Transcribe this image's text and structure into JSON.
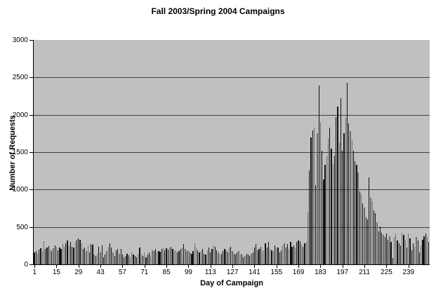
{
  "chart_data": {
    "type": "bar",
    "title": "Fall 2003/Spring 2004 Campaigns",
    "xlabel": "Day of Campaign",
    "ylabel": "Number of Requests",
    "ylim": [
      0,
      3000
    ],
    "yticks": [
      0,
      500,
      1000,
      1500,
      2000,
      2500,
      3000
    ],
    "xticks": [
      1,
      15,
      29,
      43,
      57,
      71,
      85,
      99,
      113,
      127,
      141,
      155,
      169,
      183,
      197,
      211,
      225,
      239
    ],
    "x_start_day": 1,
    "num_days": 252,
    "grid": "horizontal",
    "legend": "none",
    "colors": {
      "plot_background": "#c0c0c0",
      "gridline": "#404040",
      "bar": "#111111",
      "bar_fill_accent": "#6e6e6e",
      "axis": "#000000",
      "text": "#000000"
    },
    "values": [
      160,
      180,
      145,
      200,
      220,
      175,
      306,
      206,
      222,
      244,
      197,
      175,
      212,
      253,
      231,
      190,
      222,
      206,
      269,
      231,
      284,
      316,
      253,
      300,
      237,
      222,
      300,
      331,
      347,
      325,
      284,
      206,
      222,
      175,
      253,
      159,
      269,
      262,
      128,
      112,
      144,
      237,
      159,
      253,
      97,
      128,
      175,
      237,
      284,
      222,
      159,
      112,
      190,
      206,
      144,
      206,
      128,
      97,
      112,
      144,
      119,
      97,
      159,
      128,
      112,
      97,
      144,
      222,
      128,
      112,
      159,
      97,
      128,
      159,
      119,
      190,
      175,
      206,
      159,
      181,
      169,
      206,
      222,
      190,
      212,
      200,
      222,
      237,
      206,
      175,
      190,
      159,
      181,
      206,
      222,
      275,
      206,
      175,
      190,
      159,
      144,
      181,
      285,
      222,
      190,
      159,
      175,
      206,
      144,
      128,
      190,
      222,
      159,
      206,
      253,
      231,
      190,
      159,
      128,
      144,
      175,
      206,
      190,
      159,
      222,
      237,
      175,
      144,
      128,
      159,
      175,
      144,
      128,
      97,
      112,
      144,
      128,
      112,
      144,
      159,
      222,
      269,
      190,
      206,
      237,
      175,
      190,
      284,
      222,
      300,
      206,
      190,
      175,
      253,
      222,
      222,
      159,
      190,
      253,
      284,
      222,
      269,
      206,
      300,
      237,
      253,
      222,
      300,
      316,
      310,
      260,
      230,
      280,
      300,
      690,
      1260,
      1700,
      1790,
      1830,
      1060,
      1750,
      2390,
      1900,
      1520,
      1130,
      1330,
      1440,
      1690,
      1830,
      1550,
      1340,
      1450,
      1970,
      2110,
      1630,
      2220,
      1520,
      1750,
      1960,
      2430,
      1880,
      1780,
      1660,
      1520,
      1380,
      1330,
      1230,
      975,
      940,
      815,
      760,
      630,
      600,
      1160,
      890,
      840,
      720,
      680,
      565,
      440,
      503,
      425,
      394,
      363,
      409,
      331,
      378,
      300,
      81,
      363,
      409,
      316,
      284,
      253,
      425,
      394,
      331,
      222,
      409,
      347,
      190,
      284,
      237,
      363,
      316,
      159,
      253,
      331,
      378,
      409,
      363,
      300
    ]
  }
}
